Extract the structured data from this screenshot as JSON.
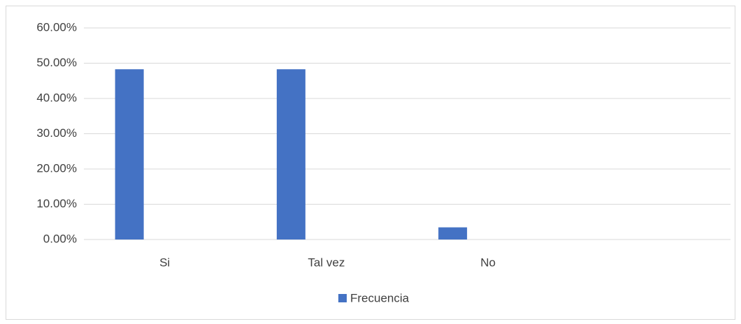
{
  "chart_data": {
    "type": "bar",
    "categories": [
      "Si",
      "Tal vez",
      "No",
      null
    ],
    "series": [
      {
        "name": "Frecuencia",
        "color": "#4472c4",
        "values": [
          48.28,
          48.28,
          3.45,
          null
        ]
      }
    ],
    "ylim": [
      0,
      60
    ],
    "yticks": [
      {
        "value": 0,
        "label": "0.00%"
      },
      {
        "value": 10,
        "label": "10.00%"
      },
      {
        "value": 20,
        "label": "20.00%"
      },
      {
        "value": 30,
        "label": "30.00%"
      },
      {
        "value": 40,
        "label": "40.00%"
      },
      {
        "value": 50,
        "label": "50.00%"
      },
      {
        "value": 60,
        "label": "60.00%"
      }
    ],
    "grid": true,
    "legend": "bottom"
  }
}
